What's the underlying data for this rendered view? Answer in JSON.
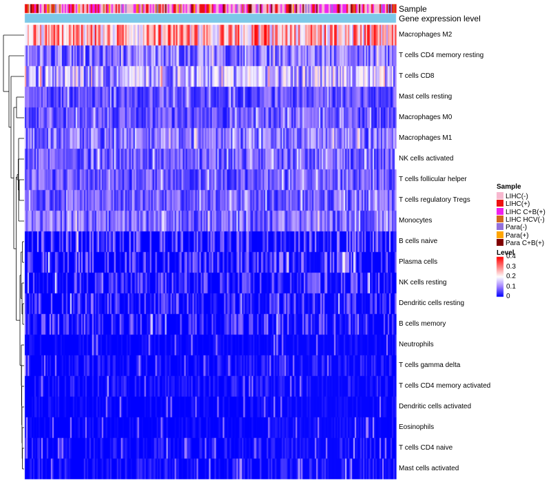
{
  "chart_data": {
    "type": "heatmap",
    "title": "",
    "annotation_tracks": [
      {
        "name": "Sample",
        "label": "Sample"
      },
      {
        "name": "Gene expression level",
        "label": "Gene expression level",
        "color": "#7cc8e8"
      }
    ],
    "rows": [
      {
        "label": "Macrophages M2",
        "mean": 0.26
      },
      {
        "label": "T cells CD4 memory resting",
        "mean": 0.09
      },
      {
        "label": "T cells CD8",
        "mean": 0.13
      },
      {
        "label": "Mast cells resting",
        "mean": 0.06
      },
      {
        "label": "Macrophages M0",
        "mean": 0.06
      },
      {
        "label": "Macrophages M1",
        "mean": 0.09
      },
      {
        "label": "NK cells activated",
        "mean": 0.07
      },
      {
        "label": "T cells follicular helper",
        "mean": 0.07
      },
      {
        "label": "T cells regulatory  Tregs",
        "mean": 0.07
      },
      {
        "label": "Monocytes",
        "mean": 0.08
      },
      {
        "label": "B cells naive",
        "mean": 0.05
      },
      {
        "label": "Plasma cells",
        "mean": 0.05
      },
      {
        "label": "NK cells resting",
        "mean": 0.04
      },
      {
        "label": "Dendritic cells resting",
        "mean": 0.04
      },
      {
        "label": "B cells memory",
        "mean": 0.04
      },
      {
        "label": "Neutrophils",
        "mean": 0.01
      },
      {
        "label": "T cells gamma delta",
        "mean": 0.02
      },
      {
        "label": "T cells CD4 memory activated",
        "mean": 0.02
      },
      {
        "label": "Dendritic cells activated",
        "mean": 0.01
      },
      {
        "label": "Eosinophils",
        "mean": 0.01
      },
      {
        "label": "T cells CD4 naive",
        "mean": 0.02
      },
      {
        "label": "Mast cells activated",
        "mean": 0.02
      }
    ],
    "color_scale": {
      "title": "Level",
      "min": 0,
      "max": 0.4,
      "ticks": [
        "0.4",
        "0.3",
        "0.2",
        "0.1",
        "0"
      ],
      "stops": [
        {
          "value": 0,
          "color": "#0000ff"
        },
        {
          "value": 0.1,
          "color": "#9f7fff"
        },
        {
          "value": 0.2,
          "color": "#ffffff"
        },
        {
          "value": 0.3,
          "color": "#ff8080"
        },
        {
          "value": 0.4,
          "color": "#ff0000"
        }
      ]
    },
    "sample_legend": {
      "title": "Sample",
      "items": [
        {
          "label": "LIHC(-)",
          "color": "#f7b8cf"
        },
        {
          "label": "LIHC(+)",
          "color": "#ee1111"
        },
        {
          "label": "LIHC C+B(+)",
          "color": "#ee22ee"
        },
        {
          "label": "LIHC HCV(-)",
          "color": "#d2691e"
        },
        {
          "label": "Para(-)",
          "color": "#9370db"
        },
        {
          "label": "Para(+)",
          "color": "#ffa500"
        },
        {
          "label": "Para C+B(+)",
          "color": "#800000"
        }
      ]
    },
    "row_dendrogram": true,
    "column_dendrogram": false,
    "legend_position": "right"
  }
}
